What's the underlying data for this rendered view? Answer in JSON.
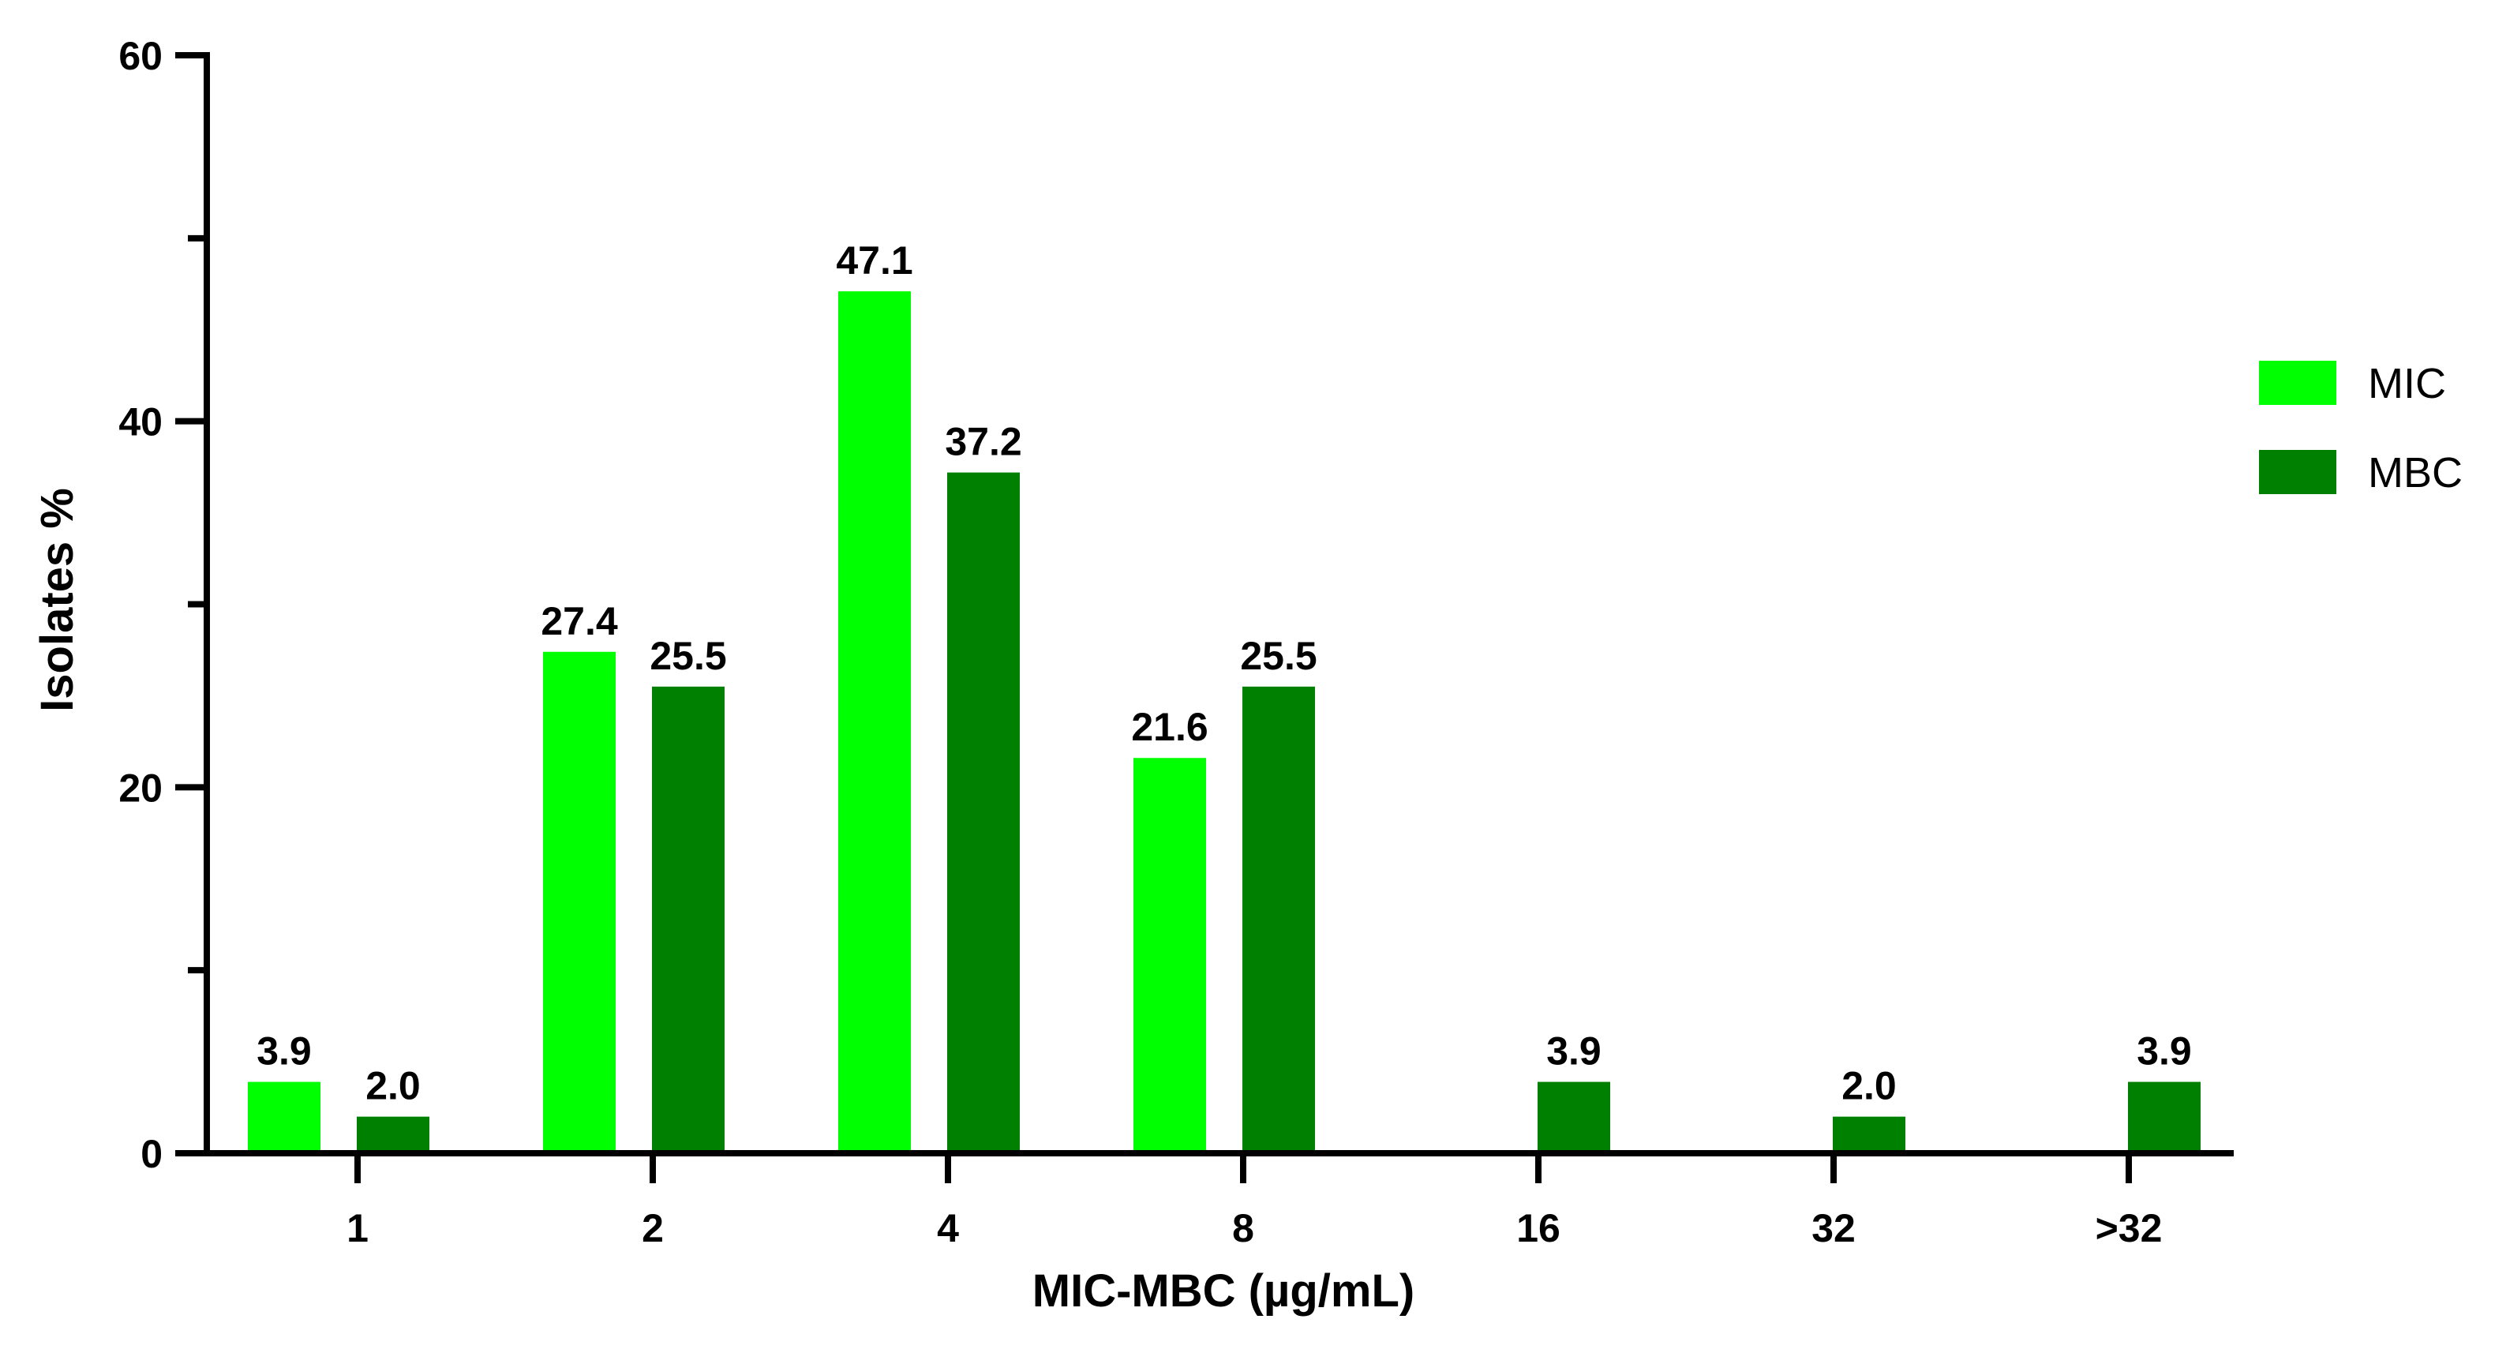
{
  "chart_data": {
    "type": "bar",
    "categories": [
      "1",
      "2",
      "4",
      "8",
      "16",
      "32",
      ">32"
    ],
    "series": [
      {
        "name": "MIC",
        "color": "#00ff00",
        "values": [
          3.9,
          27.4,
          47.1,
          21.6,
          null,
          null,
          null
        ],
        "labels": [
          "3.9",
          "27.4",
          "47.1",
          "21.6",
          null,
          null,
          null
        ]
      },
      {
        "name": "MBC",
        "color": "#008000",
        "values": [
          2.0,
          25.5,
          37.2,
          25.5,
          3.9,
          2.0,
          3.9
        ],
        "labels": [
          "2.0",
          "25.5",
          "37.2",
          "25.5",
          "3.9",
          "2.0",
          "3.9"
        ]
      }
    ],
    "xlabel": "MIC-MBC (µg/mL)",
    "ylabel": "Isolates %",
    "ylim": [
      0,
      60
    ],
    "yticks_major": [
      0,
      20,
      40,
      60
    ],
    "yticks_minor": [
      10,
      30,
      50
    ],
    "legend": "right",
    "grid": false
  }
}
